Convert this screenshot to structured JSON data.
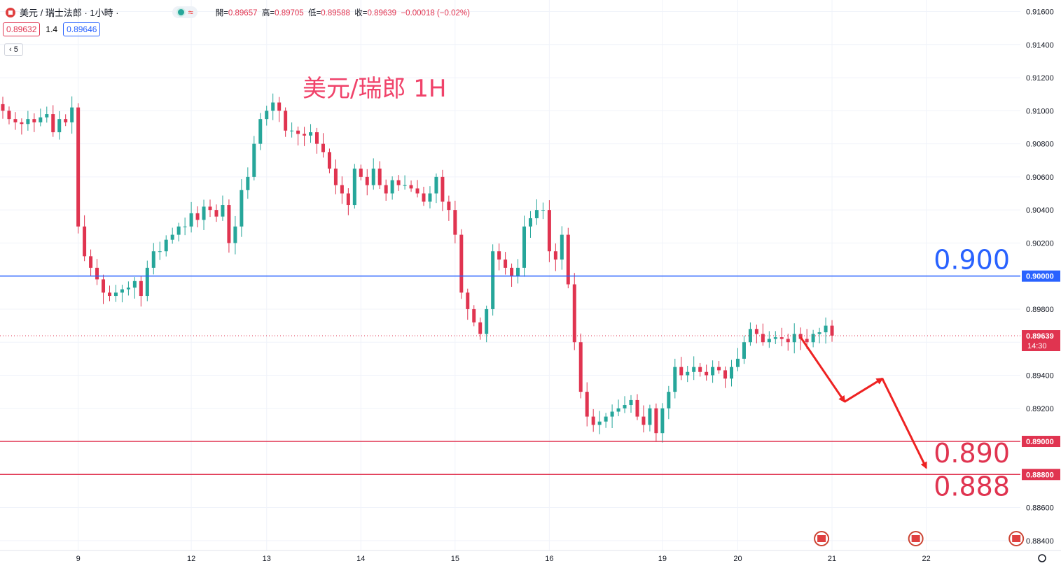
{
  "header": {
    "symbol": "美元 / 瑞士法郎 · 1小時 ·",
    "wave_icon": "≈",
    "ohlc": {
      "open_label": "開=",
      "open": "0.89657",
      "high_label": "高=",
      "high": "0.89705",
      "low_label": "低=",
      "low": "0.89588",
      "close_label": "收=",
      "close": "0.89639",
      "change": "−0.00018 (−0.02%)"
    },
    "bid": "0.89632",
    "spread": "1.4",
    "ask": "0.89646",
    "indicator_count": "5"
  },
  "colors": {
    "up": "#26a69a",
    "down": "#e03450",
    "blue_line": "#2962ff",
    "red_line": "#e03450"
  },
  "chart_data": {
    "type": "candlestick",
    "title": "美元/瑞郎 1H",
    "ylim": [
      0.8834,
      0.9167
    ],
    "y_ticks": [
      "0.91600",
      "0.91400",
      "0.91200",
      "0.91000",
      "0.90800",
      "0.90600",
      "0.90400",
      "0.90200",
      "0.90000",
      "0.89800",
      "0.89600",
      "0.89400",
      "0.89200",
      "0.89000",
      "0.88800",
      "0.88600",
      "0.88400"
    ],
    "x_ticks": [
      {
        "label": "9",
        "i": 12
      },
      {
        "label": "12",
        "i": 30
      },
      {
        "label": "13",
        "i": 42
      },
      {
        "label": "14",
        "i": 57
      },
      {
        "label": "15",
        "i": 72
      },
      {
        "label": "16",
        "i": 87
      },
      {
        "label": "19",
        "i": 105
      },
      {
        "label": "20",
        "i": 117
      },
      {
        "label": "21",
        "i": 132
      },
      {
        "label": "22",
        "i": 147
      }
    ],
    "levels": [
      {
        "value": 0.9,
        "text": "0.900",
        "axis_label": "0.90000",
        "color": "#2962ff"
      },
      {
        "value": 0.89,
        "text": "0.890",
        "axis_label": "0.89000",
        "color": "#e03450"
      },
      {
        "value": 0.888,
        "text": "0.888",
        "axis_label": "0.88800",
        "color": "#e03450"
      }
    ],
    "last_price": {
      "value": 0.89639,
      "label": "0.89639",
      "countdown": "14:30"
    },
    "projection": [
      {
        "i": 127,
        "y": 0.8963
      },
      {
        "i": 134,
        "y": 0.8924
      },
      {
        "i": 140,
        "y": 0.8938
      },
      {
        "i": 147,
        "y": 0.8884
      }
    ],
    "closes": [
      0.91,
      0.9095,
      0.9093,
      0.9092,
      0.9095,
      0.9093,
      0.9096,
      0.9098,
      0.9087,
      0.9095,
      0.9093,
      0.9102,
      0.903,
      0.9012,
      0.9005,
      0.8998,
      0.899,
      0.8988,
      0.899,
      0.8992,
      0.8993,
      0.8997,
      0.8988,
      0.9005,
      0.9015,
      0.9015,
      0.9022,
      0.9025,
      0.903,
      0.903,
      0.9038,
      0.9034,
      0.9042,
      0.904,
      0.9036,
      0.9043,
      0.902,
      0.903,
      0.9052,
      0.906,
      0.908,
      0.9095,
      0.91,
      0.9105,
      0.91,
      0.9088,
      0.9088,
      0.9086,
      0.9085,
      0.9087,
      0.908,
      0.9075,
      0.9065,
      0.9055,
      0.905,
      0.9043,
      0.9065,
      0.906,
      0.9055,
      0.9065,
      0.9055,
      0.905,
      0.9058,
      0.9055,
      0.9055,
      0.9053,
      0.905,
      0.9045,
      0.905,
      0.906,
      0.9045,
      0.904,
      0.9025,
      0.899,
      0.898,
      0.8972,
      0.8965,
      0.898,
      0.9015,
      0.901,
      0.9005,
      0.9,
      0.9005,
      0.903,
      0.9035,
      0.904,
      0.904,
      0.9015,
      0.901,
      0.9025,
      0.8995,
      0.896,
      0.893,
      0.8915,
      0.891,
      0.8912,
      0.8915,
      0.8918,
      0.892,
      0.8922,
      0.8925,
      0.8915,
      0.891,
      0.892,
      0.8905,
      0.892,
      0.893,
      0.8945,
      0.894,
      0.8942,
      0.8945,
      0.8942,
      0.894,
      0.8945,
      0.8943,
      0.8938,
      0.8945,
      0.895,
      0.896,
      0.8968,
      0.8965,
      0.896,
      0.8962,
      0.8963,
      0.8962,
      0.896,
      0.8965,
      0.8962,
      0.896,
      0.8965,
      0.8966,
      0.897,
      0.8964
    ]
  }
}
